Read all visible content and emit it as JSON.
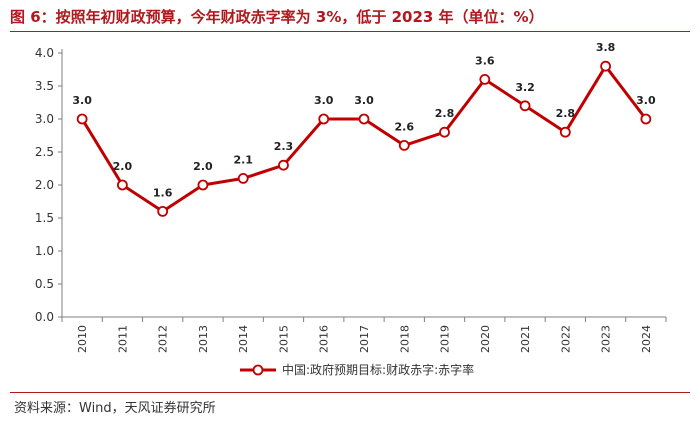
{
  "title": "图 6：按照年初财政预算，今年财政赤字率为 3%，低于 2023 年（单位：%）",
  "source": "资料来源：Wind，天风证券研究所",
  "colors": {
    "series": "#c00000",
    "title": "#b0191e"
  },
  "chart_data": {
    "type": "line",
    "title": "按照年初财政预算，今年财政赤字率为 3%，低于 2023 年（单位：%）",
    "xlabel": "",
    "ylabel": "",
    "ylim": [
      0.0,
      4.0
    ],
    "ytick_labels": [
      "0.0",
      "0.5",
      "1.0",
      "1.5",
      "2.0",
      "2.5",
      "3.0",
      "3.5",
      "4.0"
    ],
    "grid": false,
    "legend_position": "bottom",
    "categories": [
      "2010",
      "2011",
      "2012",
      "2013",
      "2014",
      "2015",
      "2016",
      "2017",
      "2018",
      "2019",
      "2020",
      "2021",
      "2022",
      "2023",
      "2024"
    ],
    "series": [
      {
        "name": "中国:政府预期目标:财政赤字:赤字率",
        "values": [
          3.0,
          2.0,
          1.6,
          2.0,
          2.1,
          2.3,
          3.0,
          3.0,
          2.6,
          2.8,
          3.6,
          3.2,
          2.8,
          3.8,
          3.0
        ],
        "labels": [
          "3.0",
          "2.0",
          "1.6",
          "2.0",
          "2.1",
          "2.3",
          "3.0",
          "3.0",
          "2.6",
          "2.8",
          "3.6",
          "3.2",
          "2.8",
          "3.8",
          "3.0"
        ]
      }
    ]
  }
}
